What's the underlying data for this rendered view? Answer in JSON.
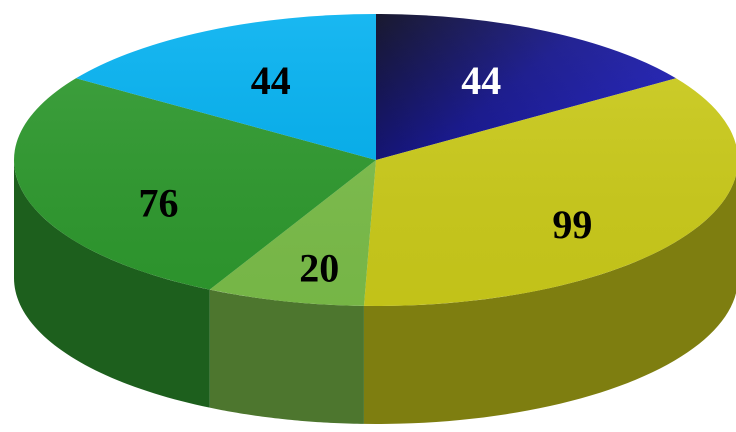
{
  "chart_data": {
    "type": "pie",
    "style": "3d",
    "title": "",
    "start": "12 o'clock",
    "direction": "clockwise",
    "slices": [
      {
        "label": "44",
        "value": 44,
        "color": "#1a1ab8",
        "label_color": "#ffffff"
      },
      {
        "label": "99",
        "value": 99,
        "color": "#cccc1a",
        "label_color": "#000000"
      },
      {
        "label": "20",
        "value": 20,
        "color": "#7cbf4a",
        "label_color": "#000000"
      },
      {
        "label": "76",
        "value": 76,
        "color": "#2e9a2e",
        "label_color": "#000000"
      },
      {
        "label": "44",
        "value": 44,
        "color": "#00b0f0",
        "label_color": "#000000"
      }
    ]
  }
}
